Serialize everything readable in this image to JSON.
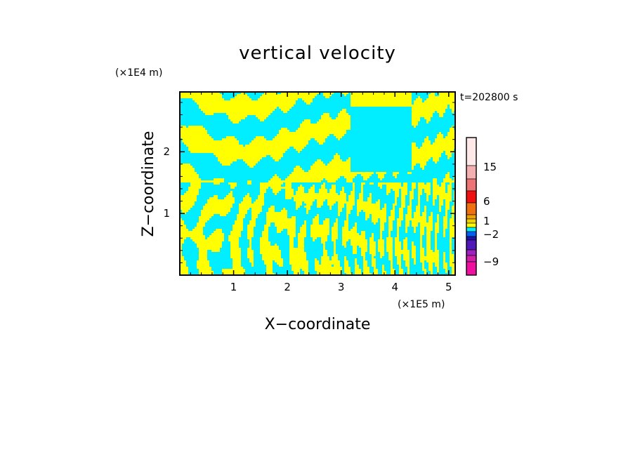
{
  "chart_data": {
    "type": "heatmap",
    "title": "vertical velocity",
    "xlabel": "X−coordinate",
    "ylabel": "Z−coordinate",
    "x_unit": "(×1E5 m)",
    "y_unit": "(×1E4 m)",
    "time_label": "t=202800 s",
    "xlim": [
      0,
      5.12
    ],
    "ylim": [
      0,
      2.97
    ],
    "x_ticks": [
      1,
      2,
      3,
      4,
      5
    ],
    "y_ticks": [
      1,
      2
    ],
    "fill_colors": {
      "positive": "#ffff00",
      "negative": "#00eeff"
    },
    "colorbar": {
      "colors_top_to_bottom": [
        "#ffe8e8",
        "#f4b0b0",
        "#ec7474",
        "#f01010",
        "#f07010",
        "#f0a000",
        "#f4d000",
        "#ffff00",
        "#00eeff",
        "#0060f0",
        "#2010b0",
        "#5018b8",
        "#a020c0",
        "#d020a8",
        "#f010a0"
      ],
      "tick_labels": [
        "15",
        "6",
        "1",
        "−2",
        "−9"
      ]
    }
  }
}
